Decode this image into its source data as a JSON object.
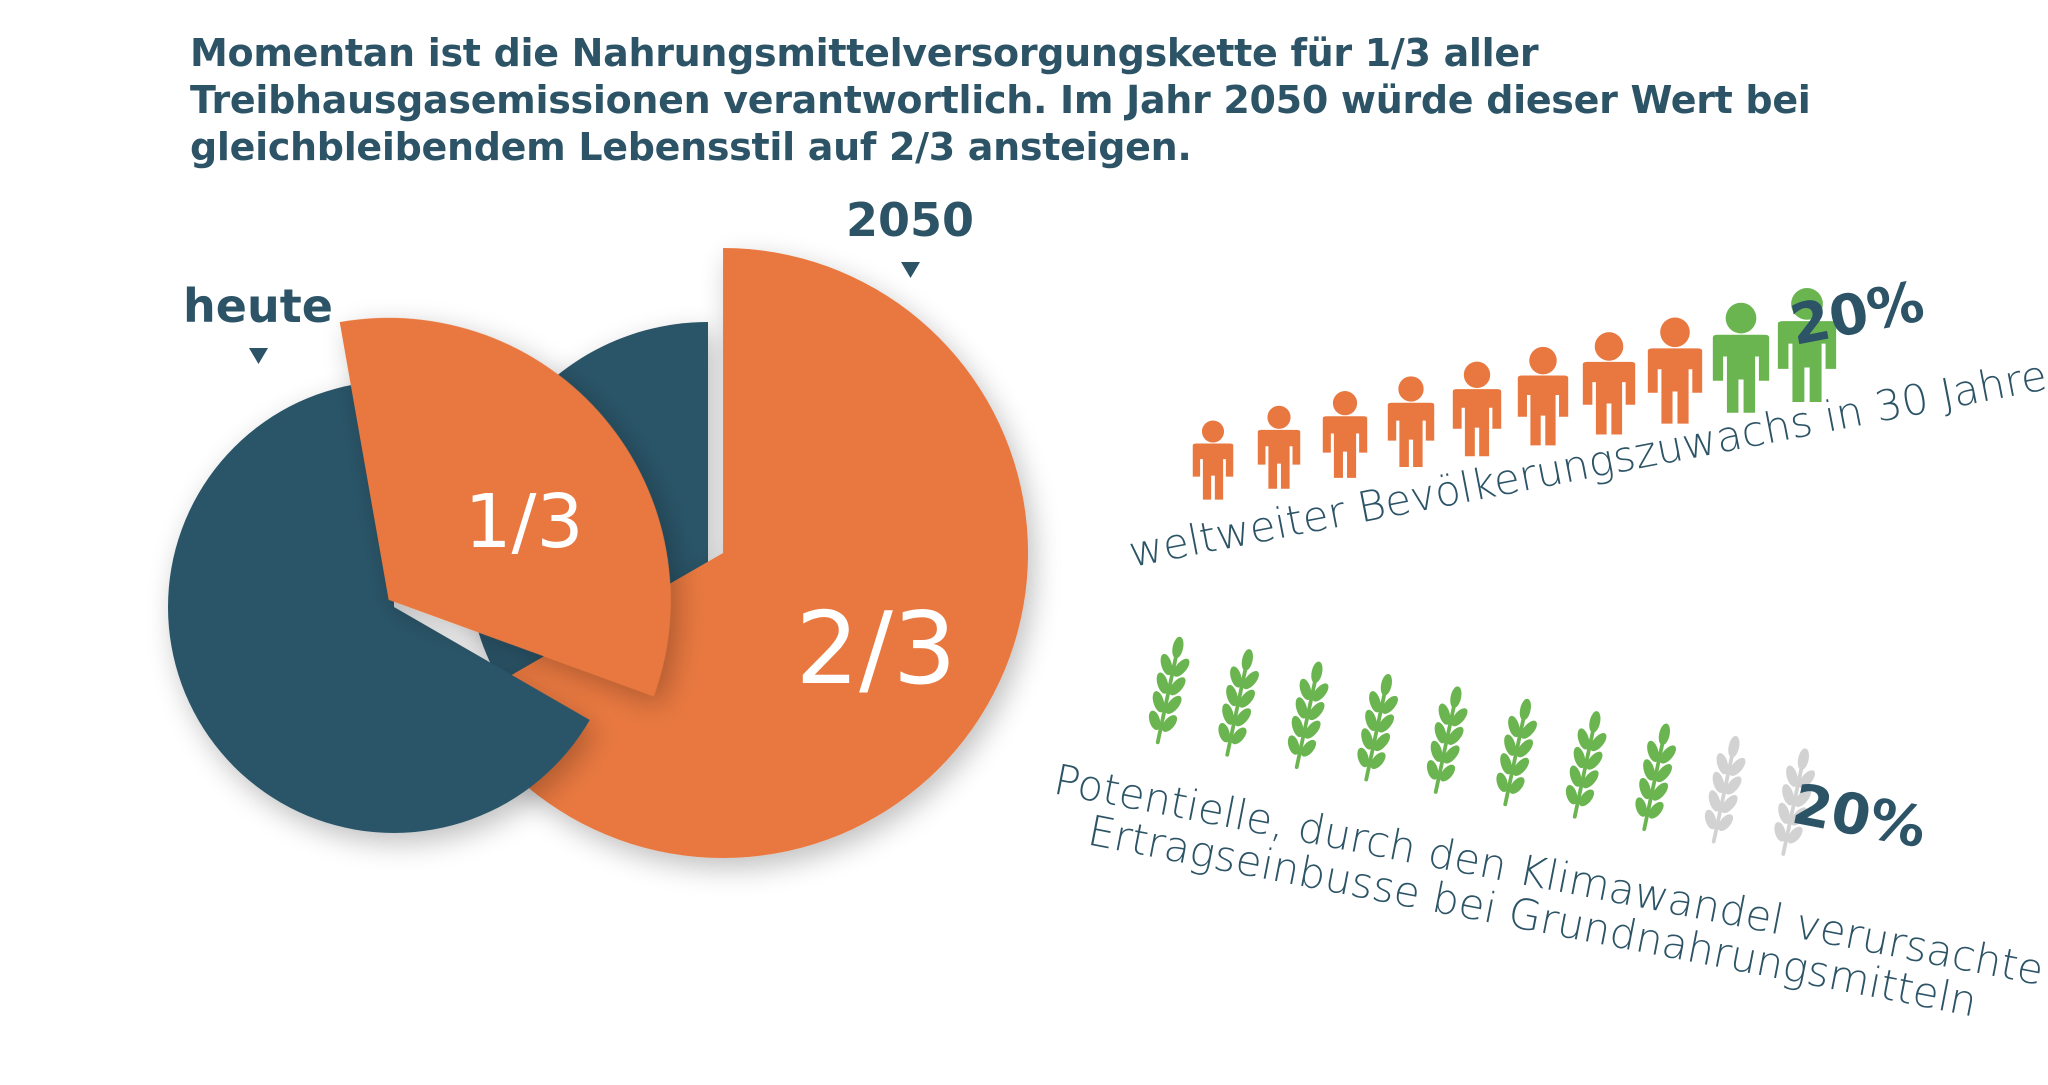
{
  "headline": "Momentan ist die Nahrungsmittelversorgungskette für 1/3 aller Treibhausgasemissionen verantwortlich. Im Jahr 2050 würde dieser Wert bei gleichbleibendem Lebensstil auf 2/3 ansteigen.",
  "colors": {
    "dark": "#2a5568",
    "orange": "#e87840",
    "green": "#6ab550",
    "grey": "#d2d2d2"
  },
  "chart_data": [
    {
      "type": "pie",
      "label": "heute",
      "slice_label": "1/3",
      "slices": [
        {
          "label": "1/3",
          "value": 0.3333,
          "color": "#e87840"
        },
        {
          "value": 0.6667,
          "color": "#2a5568"
        }
      ]
    },
    {
      "type": "pie",
      "label": "2050",
      "slice_label": "2/3",
      "slices": [
        {
          "label": "2/3",
          "value": 0.6667,
          "color": "#e87840"
        },
        {
          "value": 0.3333,
          "color": "#2a5568"
        }
      ]
    }
  ],
  "population": {
    "icons_total": 10,
    "highlight_icons": 2,
    "percent": "20%",
    "caption": "weltweiter Bevölkerungszuwachs in 30 Jahren",
    "icon": "person-icon"
  },
  "crops": {
    "icons_total": 10,
    "lost_icons": 2,
    "percent": "20%",
    "caption_line1": "Potentielle, durch den Klimawandel verursachte",
    "caption_line2": "Ertragseinbusse bei Grundnahrungsmitteln",
    "icon": "wheat-icon"
  }
}
